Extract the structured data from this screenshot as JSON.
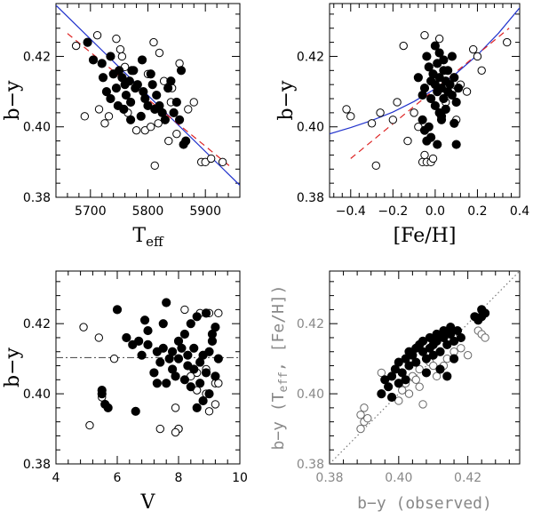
{
  "chart_data": [
    {
      "id": "teff",
      "type": "scatter",
      "xlabel": "T",
      "xlabel_sub": "eff",
      "ylabel": "b−y",
      "xlim": [
        5640,
        5960
      ],
      "ylim": [
        0.38,
        0.435
      ],
      "xticks": [
        5700,
        5800,
        5900
      ],
      "xtick_labels": [
        "5700",
        "5800",
        "5900"
      ],
      "yticks": [
        0.38,
        0.4,
        0.42
      ],
      "ytick_labels": [
        "0.38",
        "0.40",
        "0.42"
      ],
      "lines": [
        {
          "style": "solid",
          "color": "#2233cc",
          "x": [
            5640,
            5960
          ],
          "y": [
            0.4345,
            0.3834
          ]
        },
        {
          "style": "dashed",
          "color": "#dd2222",
          "x": [
            5660,
            5945
          ],
          "y": [
            0.4265,
            0.3885
          ]
        }
      ],
      "filled": [
        [
          5695,
          0.424
        ],
        [
          5705,
          0.419
        ],
        [
          5720,
          0.418
        ],
        [
          5722,
          0.414
        ],
        [
          5728,
          0.41
        ],
        [
          5735,
          0.42
        ],
        [
          5740,
          0.415
        ],
        [
          5745,
          0.411
        ],
        [
          5750,
          0.416
        ],
        [
          5755,
          0.414
        ],
        [
          5760,
          0.412
        ],
        [
          5762,
          0.409
        ],
        [
          5768,
          0.413
        ],
        [
          5770,
          0.407
        ],
        [
          5775,
          0.416
        ],
        [
          5778,
          0.411
        ],
        [
          5782,
          0.412
        ],
        [
          5788,
          0.403
        ],
        [
          5792,
          0.41
        ],
        [
          5795,
          0.408
        ],
        [
          5800,
          0.406
        ],
        [
          5805,
          0.415
        ],
        [
          5808,
          0.412
        ],
        [
          5812,
          0.405
        ],
        [
          5815,
          0.409
        ],
        [
          5820,
          0.406
        ],
        [
          5825,
          0.404
        ],
        [
          5830,
          0.402
        ],
        [
          5835,
          0.411
        ],
        [
          5840,
          0.413
        ],
        [
          5845,
          0.404
        ],
        [
          5850,
          0.407
        ],
        [
          5855,
          0.402
        ],
        [
          5858,
          0.416
        ],
        [
          5862,
          0.395
        ],
        [
          5866,
          0.396
        ],
        [
          5735,
          0.408
        ],
        [
          5748,
          0.406
        ],
        [
          5758,
          0.405
        ],
        [
          5770,
          0.402
        ],
        [
          5790,
          0.419
        ],
        [
          5772,
          0.416
        ]
      ],
      "open": [
        [
          5675,
          0.423
        ],
        [
          5690,
          0.403
        ],
        [
          5712,
          0.426
        ],
        [
          5715,
          0.405
        ],
        [
          5725,
          0.401
        ],
        [
          5732,
          0.403
        ],
        [
          5745,
          0.425
        ],
        [
          5752,
          0.422
        ],
        [
          5760,
          0.417
        ],
        [
          5765,
          0.404
        ],
        [
          5780,
          0.399
        ],
        [
          5800,
          0.415
        ],
        [
          5810,
          0.424
        ],
        [
          5812,
          0.389
        ],
        [
          5818,
          0.401
        ],
        [
          5828,
          0.413
        ],
        [
          5836,
          0.396
        ],
        [
          5842,
          0.411
        ],
        [
          5855,
          0.418
        ],
        [
          5870,
          0.405
        ],
        [
          5880,
          0.407
        ],
        [
          5893,
          0.39
        ],
        [
          5900,
          0.39
        ],
        [
          5910,
          0.391
        ],
        [
          5930,
          0.39
        ],
        [
          5820,
          0.421
        ],
        [
          5840,
          0.407
        ],
        [
          5755,
          0.42
        ],
        [
          5795,
          0.399
        ],
        [
          5805,
          0.4
        ],
        [
          5850,
          0.398
        ]
      ]
    },
    {
      "id": "feh",
      "type": "scatter",
      "xlabel": "[Fe/H]",
      "ylabel": "b−y",
      "xlim": [
        -0.5,
        0.4
      ],
      "ylim": [
        0.38,
        0.435
      ],
      "xticks": [
        -0.4,
        -0.2,
        0.0,
        0.2,
        0.4
      ],
      "xtick_labels": [
        "−0.4",
        "−0.2",
        "0.0",
        "0.2",
        "0.4"
      ],
      "yticks": [
        0.38,
        0.4,
        0.42
      ],
      "ytick_labels": [
        "0.38",
        "0.40",
        "0.42"
      ],
      "lines": [
        {
          "style": "solid",
          "color": "#2233cc",
          "x": [
            -0.5,
            -0.4,
            -0.3,
            -0.2,
            -0.1,
            0.0,
            0.1,
            0.2,
            0.3,
            0.4
          ],
          "y": [
            0.398,
            0.3998,
            0.4018,
            0.4042,
            0.4072,
            0.4108,
            0.4152,
            0.4204,
            0.4266,
            0.4338
          ]
        },
        {
          "style": "dashed",
          "color": "#dd2222",
          "x": [
            -0.4,
            0.35
          ],
          "y": [
            0.391,
            0.428
          ]
        }
      ],
      "filled": [
        [
          -0.04,
          0.42
        ],
        [
          -0.03,
          0.417
        ],
        [
          -0.02,
          0.413
        ],
        [
          -0.02,
          0.408
        ],
        [
          -0.01,
          0.415
        ],
        [
          0.0,
          0.412
        ],
        [
          0.0,
          0.406
        ],
        [
          0.01,
          0.418
        ],
        [
          0.01,
          0.41
        ],
        [
          0.02,
          0.404
        ],
        [
          0.02,
          0.414
        ],
        [
          0.03,
          0.411
        ],
        [
          0.03,
          0.402
        ],
        [
          0.04,
          0.416
        ],
        [
          0.04,
          0.408
        ],
        [
          0.05,
          0.413
        ],
        [
          0.05,
          0.405
        ],
        [
          0.06,
          0.41
        ],
        [
          0.07,
          0.412
        ],
        [
          0.08,
          0.409
        ],
        [
          0.09,
          0.414
        ],
        [
          0.1,
          0.407
        ],
        [
          -0.05,
          0.411
        ],
        [
          -0.06,
          0.409
        ],
        [
          -0.06,
          0.402
        ],
        [
          -0.05,
          0.399
        ],
        [
          -0.04,
          0.396
        ],
        [
          -0.03,
          0.4
        ],
        [
          -0.02,
          0.397
        ],
        [
          -0.08,
          0.414
        ],
        [
          0.0,
          0.423
        ],
        [
          0.02,
          0.421
        ],
        [
          0.04,
          0.419
        ],
        [
          0.06,
          0.416
        ],
        [
          0.11,
          0.411
        ],
        [
          0.09,
          0.401
        ],
        [
          0.1,
          0.395
        ],
        [
          0.08,
          0.42
        ],
        [
          0.01,
          0.395
        ],
        [
          0.03,
          0.403
        ]
      ],
      "open": [
        [
          -0.42,
          0.405
        ],
        [
          -0.4,
          0.403
        ],
        [
          -0.3,
          0.401
        ],
        [
          -0.28,
          0.389
        ],
        [
          -0.26,
          0.404
        ],
        [
          -0.2,
          0.402
        ],
        [
          -0.15,
          0.423
        ],
        [
          -0.13,
          0.396
        ],
        [
          -0.1,
          0.404
        ],
        [
          -0.08,
          0.4
        ],
        [
          -0.06,
          0.39
        ],
        [
          -0.05,
          0.392
        ],
        [
          -0.04,
          0.39
        ],
        [
          -0.02,
          0.39
        ],
        [
          -0.01,
          0.391
        ],
        [
          0.0,
          0.423
        ],
        [
          -0.05,
          0.426
        ],
        [
          0.02,
          0.425
        ],
        [
          0.05,
          0.407
        ],
        [
          0.08,
          0.41
        ],
        [
          0.1,
          0.402
        ],
        [
          0.12,
          0.412
        ],
        [
          0.15,
          0.41
        ],
        [
          0.18,
          0.422
        ],
        [
          0.2,
          0.42
        ],
        [
          0.22,
          0.416
        ],
        [
          0.34,
          0.424
        ],
        [
          -0.18,
          0.407
        ]
      ]
    },
    {
      "id": "vmag",
      "type": "scatter",
      "xlabel": "V",
      "ylabel": "b−y",
      "xlim": [
        4,
        10
      ],
      "ylim": [
        0.38,
        0.435
      ],
      "xticks": [
        4,
        6,
        8,
        10
      ],
      "xtick_labels": [
        "4",
        "6",
        "8",
        "10"
      ],
      "yticks": [
        0.38,
        0.4,
        0.42
      ],
      "ytick_labels": [
        "0.38",
        "0.40",
        "0.42"
      ],
      "lines": [
        {
          "style": "dashdot",
          "color": "#555555",
          "x": [
            4,
            10
          ],
          "y": [
            0.4103,
            0.4103
          ]
        }
      ],
      "filled": [
        [
          5.5,
          0.4
        ],
        [
          5.5,
          0.401
        ],
        [
          5.6,
          0.397
        ],
        [
          5.7,
          0.396
        ],
        [
          6.0,
          0.424
        ],
        [
          6.3,
          0.416
        ],
        [
          6.5,
          0.414
        ],
        [
          6.6,
          0.395
        ],
        [
          6.7,
          0.415
        ],
        [
          6.8,
          0.411
        ],
        [
          7.0,
          0.414
        ],
        [
          7.0,
          0.418
        ],
        [
          7.2,
          0.406
        ],
        [
          7.3,
          0.412
        ],
        [
          7.4,
          0.409
        ],
        [
          7.5,
          0.413
        ],
        [
          7.5,
          0.42
        ],
        [
          7.6,
          0.426
        ],
        [
          7.6,
          0.403
        ],
        [
          7.7,
          0.41
        ],
        [
          7.8,
          0.407
        ],
        [
          7.8,
          0.412
        ],
        [
          7.9,
          0.405
        ],
        [
          8.0,
          0.41
        ],
        [
          8.0,
          0.415
        ],
        [
          8.1,
          0.413
        ],
        [
          8.2,
          0.404
        ],
        [
          8.2,
          0.417
        ],
        [
          8.3,
          0.408
        ],
        [
          8.3,
          0.411
        ],
        [
          8.4,
          0.42
        ],
        [
          8.4,
          0.402
        ],
        [
          8.5,
          0.407
        ],
        [
          8.5,
          0.413
        ],
        [
          8.6,
          0.422
        ],
        [
          8.7,
          0.409
        ],
        [
          8.7,
          0.403
        ],
        [
          8.8,
          0.411
        ],
        [
          8.8,
          0.398
        ],
        [
          8.9,
          0.406
        ],
        [
          9.0,
          0.412
        ],
        [
          9.0,
          0.4
        ],
        [
          9.1,
          0.417
        ],
        [
          9.1,
          0.415
        ],
        [
          9.2,
          0.419
        ],
        [
          9.3,
          0.41
        ],
        [
          9.2,
          0.405
        ],
        [
          6.9,
          0.421
        ],
        [
          7.3,
          0.403
        ],
        [
          8.6,
          0.396
        ],
        [
          8.9,
          0.423
        ]
      ],
      "open": [
        [
          4.9,
          0.419
        ],
        [
          5.1,
          0.391
        ],
        [
          5.4,
          0.416
        ],
        [
          5.5,
          0.399
        ],
        [
          5.9,
          0.41
        ],
        [
          7.4,
          0.39
        ],
        [
          7.9,
          0.396
        ],
        [
          8.0,
          0.39
        ],
        [
          8.0,
          0.39
        ],
        [
          8.2,
          0.424
        ],
        [
          8.4,
          0.405
        ],
        [
          8.6,
          0.401
        ],
        [
          8.7,
          0.423
        ],
        [
          8.9,
          0.4
        ],
        [
          9.0,
          0.423
        ],
        [
          9.1,
          0.415
        ],
        [
          9.2,
          0.403
        ],
        [
          9.3,
          0.423
        ],
        [
          9.3,
          0.403
        ],
        [
          9.2,
          0.397
        ],
        [
          8.9,
          0.407
        ],
        [
          8.6,
          0.406
        ],
        [
          7.9,
          0.389
        ],
        [
          9.0,
          0.395
        ]
      ]
    },
    {
      "id": "obs",
      "type": "scatter",
      "xlabel": "b−y (observed)",
      "ylabel": "b−y (T",
      "ylabel_sub": "eff",
      "ylabel_tail": ", [Fe/H])",
      "xlim": [
        0.38,
        0.435
      ],
      "ylim": [
        0.38,
        0.435
      ],
      "xticks": [
        0.38,
        0.4,
        0.42
      ],
      "xtick_labels": [
        "0.38",
        "0.40",
        "0.42"
      ],
      "yticks": [
        0.38,
        0.4,
        0.42
      ],
      "ytick_labels": [
        "0.38",
        "0.40",
        "0.42"
      ],
      "lines": [
        {
          "style": "dotted",
          "color": "#777777",
          "x": [
            0.38,
            0.435
          ],
          "y": [
            0.38,
            0.435
          ]
        }
      ],
      "filled": [
        [
          0.395,
          0.4
        ],
        [
          0.396,
          0.404
        ],
        [
          0.397,
          0.402
        ],
        [
          0.398,
          0.405
        ],
        [
          0.399,
          0.407
        ],
        [
          0.4,
          0.409
        ],
        [
          0.401,
          0.406
        ],
        [
          0.402,
          0.41
        ],
        [
          0.403,
          0.408
        ],
        [
          0.403,
          0.412
        ],
        [
          0.404,
          0.411
        ],
        [
          0.405,
          0.413
        ],
        [
          0.405,
          0.409
        ],
        [
          0.406,
          0.414
        ],
        [
          0.407,
          0.412
        ],
        [
          0.407,
          0.415
        ],
        [
          0.408,
          0.41
        ],
        [
          0.409,
          0.416
        ],
        [
          0.409,
          0.413
        ],
        [
          0.41,
          0.414
        ],
        [
          0.41,
          0.411
        ],
        [
          0.411,
          0.417
        ],
        [
          0.411,
          0.415
        ],
        [
          0.412,
          0.412
        ],
        [
          0.413,
          0.416
        ],
        [
          0.413,
          0.418
        ],
        [
          0.414,
          0.414
        ],
        [
          0.415,
          0.417
        ],
        [
          0.415,
          0.419
        ],
        [
          0.416,
          0.415
        ],
        [
          0.417,
          0.418
        ],
        [
          0.418,
          0.416
        ],
        [
          0.422,
          0.422
        ],
        [
          0.423,
          0.421
        ],
        [
          0.424,
          0.422
        ],
        [
          0.425,
          0.423
        ],
        [
          0.424,
          0.424
        ],
        [
          0.4,
          0.403
        ],
        [
          0.402,
          0.404
        ],
        [
          0.398,
          0.399
        ],
        [
          0.412,
          0.407
        ],
        [
          0.414,
          0.405
        ],
        [
          0.416,
          0.41
        ],
        [
          0.408,
          0.406
        ]
      ],
      "open": [
        [
          0.389,
          0.394
        ],
        [
          0.389,
          0.39
        ],
        [
          0.39,
          0.392
        ],
        [
          0.39,
          0.396
        ],
        [
          0.391,
          0.393
        ],
        [
          0.395,
          0.406
        ],
        [
          0.398,
          0.399
        ],
        [
          0.4,
          0.398
        ],
        [
          0.401,
          0.401
        ],
        [
          0.402,
          0.403
        ],
        [
          0.404,
          0.405
        ],
        [
          0.405,
          0.404
        ],
        [
          0.406,
          0.402
        ],
        [
          0.407,
          0.397
        ],
        [
          0.408,
          0.406
        ],
        [
          0.409,
          0.409
        ],
        [
          0.41,
          0.408
        ],
        [
          0.411,
          0.405
        ],
        [
          0.413,
          0.408
        ],
        [
          0.414,
          0.41
        ],
        [
          0.416,
          0.412
        ],
        [
          0.418,
          0.413
        ],
        [
          0.42,
          0.411
        ],
        [
          0.423,
          0.418
        ],
        [
          0.424,
          0.417
        ],
        [
          0.425,
          0.416
        ],
        [
          0.406,
          0.407
        ],
        [
          0.403,
          0.4
        ]
      ]
    }
  ]
}
